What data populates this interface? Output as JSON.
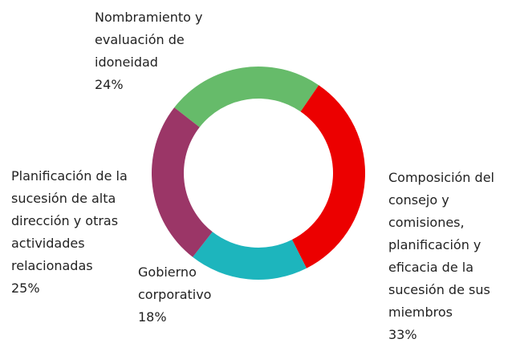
{
  "chart_data": {
    "type": "donut",
    "categories": [
      "Nombramiento y evaluación de idoneidad",
      "Composición del consejo y comisiones, planificación y eficacia de la sucesión de sus miembros",
      "Gobierno corporativo",
      "Planificación de la sucesión de alta dirección y otras actividades relacionadas"
    ],
    "values": [
      24,
      33,
      18,
      25
    ],
    "value_labels": [
      "24%",
      "33%",
      "18%",
      "25%"
    ],
    "colors": [
      "#66bb6a",
      "#ec0000",
      "#1db5bd",
      "#9b3667"
    ]
  }
}
